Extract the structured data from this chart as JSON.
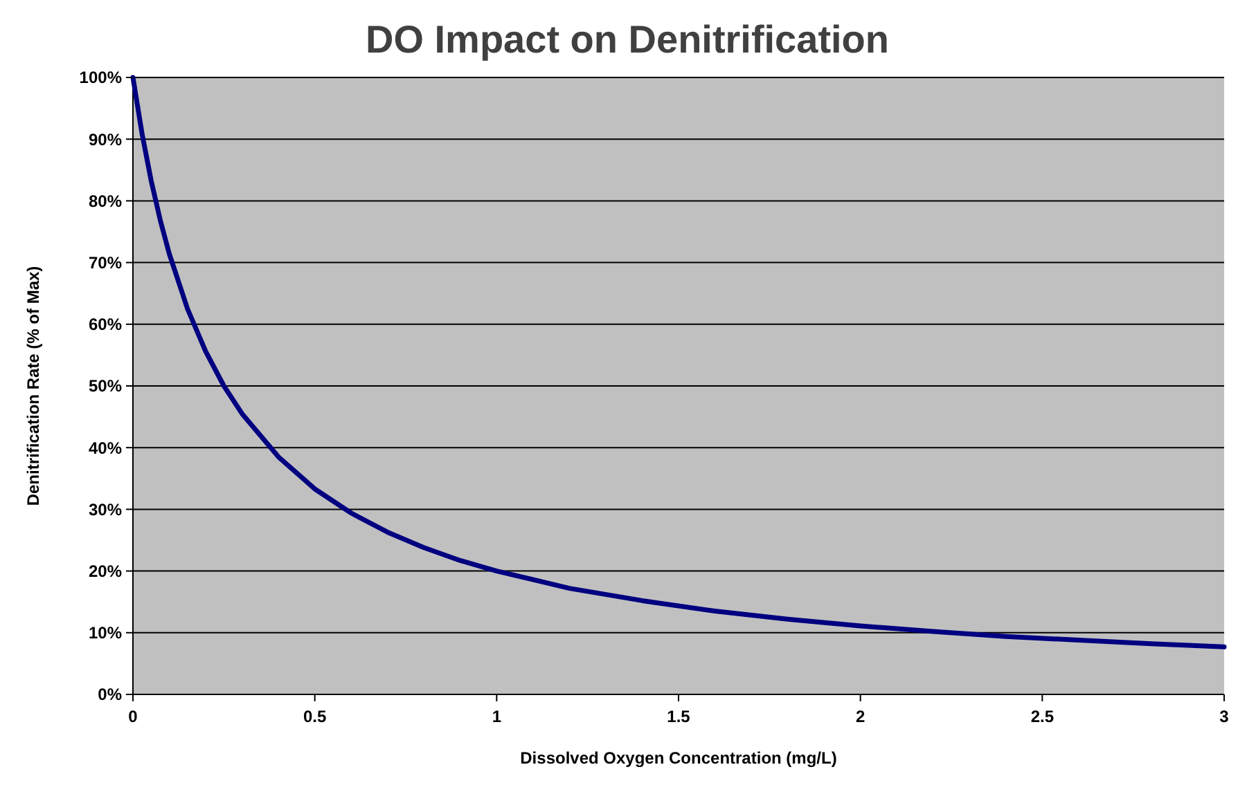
{
  "chart_data": {
    "type": "line",
    "title": "DO Impact on Denitrification",
    "xlabel": "Dissolved Oxygen Concentration (mg/L)",
    "ylabel": "Denitrification Rate (% of Max)",
    "x": [
      0,
      0.025,
      0.05,
      0.075,
      0.1,
      0.15,
      0.2,
      0.25,
      0.3,
      0.4,
      0.5,
      0.6,
      0.7,
      0.8,
      0.9,
      1,
      1.2,
      1.4,
      1.6,
      1.8,
      2,
      2.2,
      2.4,
      2.6,
      2.8,
      3
    ],
    "series": [
      {
        "color": "#000080",
        "values": [
          100,
          90.9,
          83.3,
          76.9,
          71.4,
          62.5,
          55.6,
          50,
          45.5,
          38.5,
          33.3,
          29.4,
          26.3,
          23.8,
          21.7,
          20,
          17.2,
          15.2,
          13.5,
          12.2,
          11.1,
          10.2,
          9.4,
          8.8,
          8.2,
          7.7
        ]
      }
    ],
    "xlim": [
      0,
      3
    ],
    "xticks": [
      0,
      0.5,
      1,
      1.5,
      2,
      2.5,
      3
    ],
    "ylim": [
      0,
      100
    ],
    "yticks": [
      {
        "value": 0,
        "label": "0%"
      },
      {
        "value": 10,
        "label": "10%"
      },
      {
        "value": 20,
        "label": "20%"
      },
      {
        "value": 30,
        "label": "30%"
      },
      {
        "value": 40,
        "label": "40%"
      },
      {
        "value": 50,
        "label": "50%"
      },
      {
        "value": 60,
        "label": "60%"
      },
      {
        "value": 70,
        "label": "70%"
      },
      {
        "value": 80,
        "label": "80%"
      },
      {
        "value": 90,
        "label": "90%"
      },
      {
        "value": 100,
        "label": "100%"
      }
    ],
    "grid": "y",
    "marker": "none",
    "line_style": "solid"
  }
}
